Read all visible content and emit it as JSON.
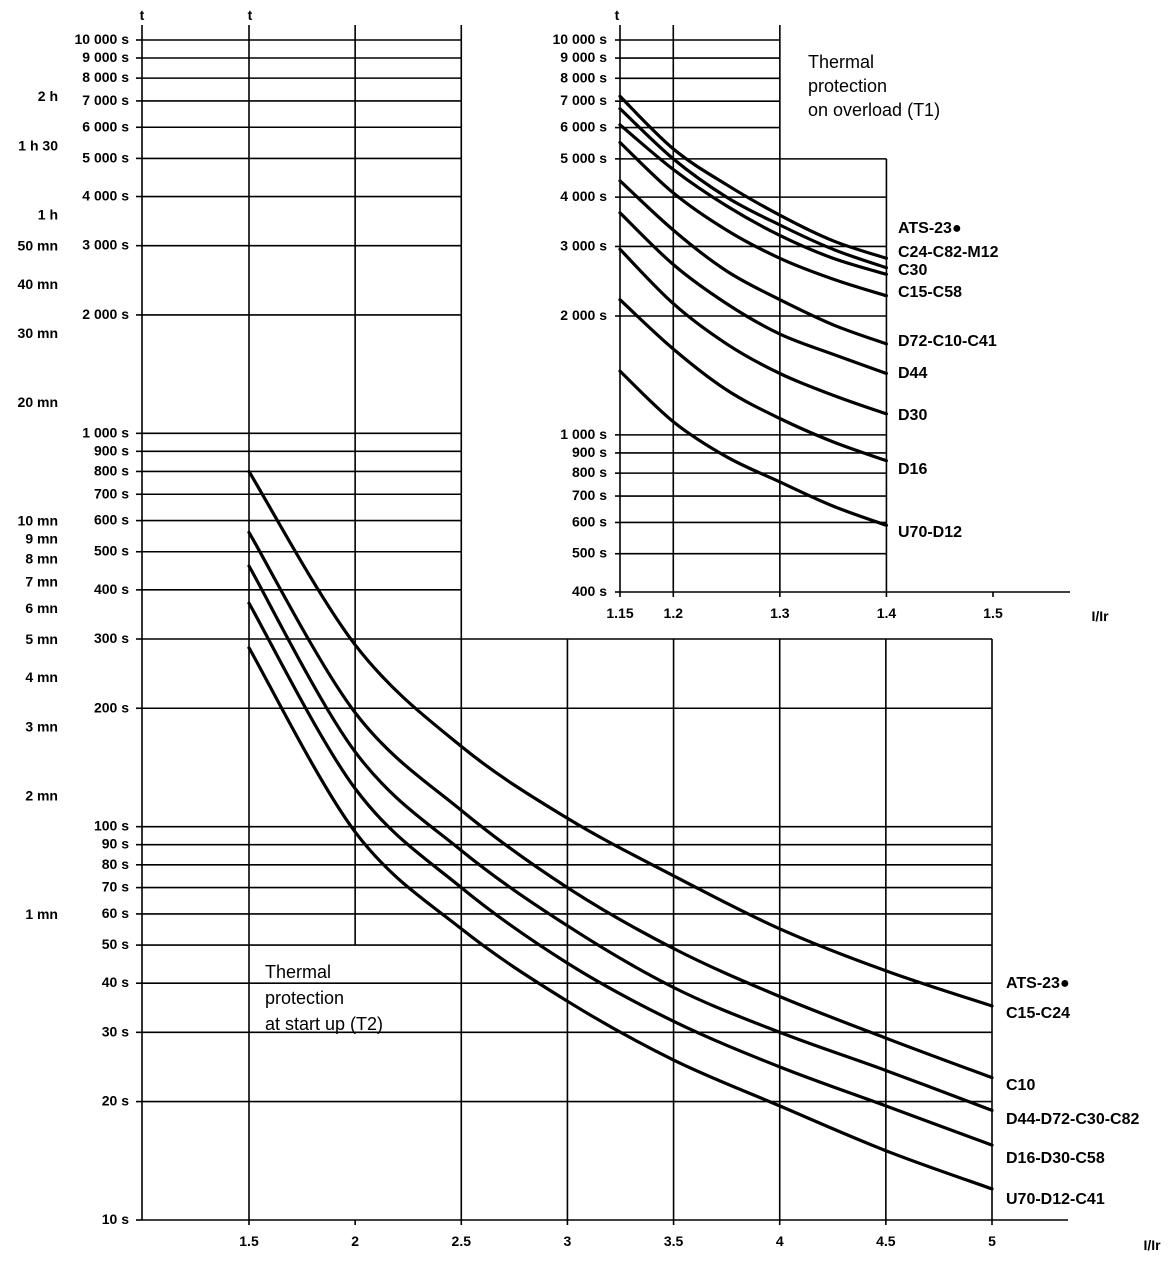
{
  "chart_data": [
    {
      "type": "line",
      "id": "t2",
      "title": "Thermal protection at start up (T2)",
      "title_lines": [
        "Thermal",
        "protection",
        "at start up (T2)"
      ],
      "xlabel": "I/Ir",
      "ylabel": "t",
      "yscale": "log",
      "xlim": [
        1.5,
        5
      ],
      "ylim": [
        10,
        10000
      ],
      "x_ticks": [
        1.5,
        2,
        2.5,
        3,
        3.5,
        4,
        4.5,
        5
      ],
      "x_tick_labels": [
        "1.5",
        "2",
        "2.5",
        "3",
        "3.5",
        "4",
        "4.5",
        "5"
      ],
      "y_ticks": [
        10,
        20,
        30,
        40,
        50,
        60,
        70,
        80,
        90,
        100,
        200,
        300,
        400,
        500,
        600,
        700,
        800,
        900,
        1000,
        2000,
        3000,
        4000,
        5000,
        6000,
        7000,
        8000,
        9000,
        10000
      ],
      "y_tick_labels": [
        "10 s",
        "20 s",
        "30 s",
        "40 s",
        "50 s",
        "60 s",
        "70 s",
        "80 s",
        "90 s",
        "100 s",
        "200 s",
        "300 s",
        "400 s",
        "500 s",
        "600 s",
        "700 s",
        "800 s",
        "900 s",
        "1 000 s",
        "2 000 s",
        "3 000 s",
        "4 000 s",
        "5 000 s",
        "6 000 s",
        "7 000 s",
        "8 000 s",
        "9 000 s",
        "10 000 s"
      ],
      "y_minute_ticks": [
        7200,
        5400,
        3600,
        3000,
        2400,
        1800,
        1200,
        600,
        540,
        480,
        420,
        360,
        300,
        240,
        180,
        120,
        60
      ],
      "y_minute_labels": [
        "2 h",
        "1 h 30",
        "1 h",
        "50 mn",
        "40 mn",
        "30 mn",
        "20 mn",
        "10 mn",
        "9 mn",
        "8 mn",
        "7 mn",
        "6 mn",
        "5 mn",
        "4 mn",
        "3 mn",
        "2 mn",
        "1 mn"
      ],
      "x": [
        1.5,
        2,
        2.5,
        3,
        3.5,
        4,
        4.5,
        5
      ],
      "series": [
        {
          "name": "ATS-23●",
          "values": [
            800,
            290,
            160,
            105,
            75,
            55,
            43,
            35
          ]
        },
        {
          "name": "C15-C24",
          "values": [
            560,
            195,
            110,
            70,
            49,
            37,
            29,
            23
          ]
        },
        {
          "name": "C10",
          "values": [
            460,
            155,
            87,
            56,
            39,
            30,
            24,
            19
          ]
        },
        {
          "name": "D44-D72-C30-C82",
          "values": [
            370,
            125,
            70,
            45,
            32,
            24.5,
            19.5,
            15.5
          ]
        },
        {
          "name": "D16-D30-C58",
          "values": [
            285,
            97,
            55,
            36,
            25.5,
            19.5,
            15,
            12
          ]
        }
      ],
      "extra_labels": [
        "U70-D12-C41"
      ]
    },
    {
      "type": "line",
      "id": "t1",
      "title": "Thermal protection on overload (T1)",
      "title_lines": [
        "Thermal",
        "protection",
        "on overload (T1)"
      ],
      "xlabel": "I/Ir",
      "ylabel": "t",
      "yscale": "log",
      "xlim": [
        1.15,
        1.5
      ],
      "ylim": [
        400,
        10000
      ],
      "x_ticks": [
        1.15,
        1.2,
        1.3,
        1.4,
        1.5
      ],
      "x_tick_labels": [
        "1.15",
        "1.2",
        "1.3",
        "1.4",
        "1.5"
      ],
      "y_ticks": [
        400,
        500,
        600,
        700,
        800,
        900,
        1000,
        2000,
        3000,
        4000,
        5000,
        6000,
        7000,
        8000,
        9000,
        10000
      ],
      "y_tick_labels": [
        "400 s",
        "500 s",
        "600 s",
        "700 s",
        "800 s",
        "900 s",
        "1 000 s",
        "2 000 s",
        "3 000 s",
        "4 000 s",
        "5 000 s",
        "6 000 s",
        "7 000 s",
        "8 000 s",
        "9 000 s",
        "10 000 s"
      ],
      "x": [
        1.15,
        1.2,
        1.25,
        1.3,
        1.35,
        1.4
      ],
      "series": [
        {
          "name": "ATS-23●",
          "values": [
            7200,
            5300,
            4300,
            3600,
            3100,
            2800
          ]
        },
        {
          "name": "C24-C82-M12",
          "values": [
            6700,
            5000,
            4000,
            3400,
            2950,
            2650
          ]
        },
        {
          "name": "C30",
          "values": [
            6100,
            4700,
            3800,
            3200,
            2800,
            2550
          ]
        },
        {
          "name": "C15-C58",
          "values": [
            5500,
            4100,
            3300,
            2800,
            2480,
            2250
          ]
        },
        {
          "name": "D72-C10-C41",
          "values": [
            4400,
            3300,
            2600,
            2200,
            1900,
            1700
          ]
        },
        {
          "name": "D44",
          "values": [
            3650,
            2700,
            2150,
            1800,
            1600,
            1430
          ]
        },
        {
          "name": "D30",
          "values": [
            2950,
            2150,
            1700,
            1430,
            1260,
            1130
          ]
        },
        {
          "name": "D16",
          "values": [
            2200,
            1650,
            1300,
            1100,
            960,
            860
          ]
        },
        {
          "name": "U70-D12",
          "values": [
            1450,
            1080,
            880,
            760,
            660,
            590
          ]
        }
      ]
    }
  ]
}
